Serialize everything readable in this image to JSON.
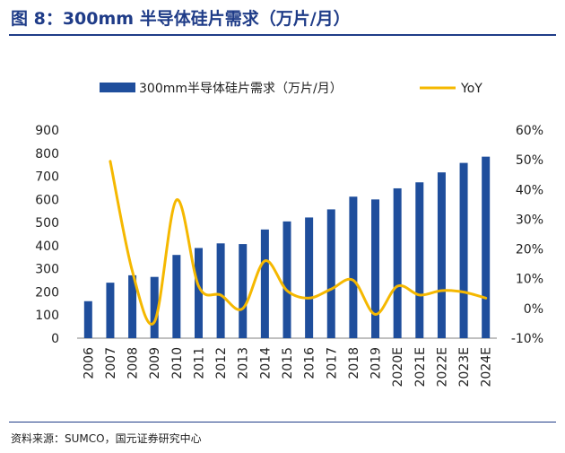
{
  "figure": {
    "title": "图 8：300mm 半导体硅片需求（万片/月）",
    "source": "资料来源：SUMCO，国元证券研究中心"
  },
  "chart_data": {
    "type": "bar",
    "categories": [
      "2006",
      "2007",
      "2008",
      "2009",
      "2010",
      "2011",
      "2012",
      "2013",
      "2014",
      "2015",
      "2016",
      "2017",
      "2018",
      "2019",
      "2020E",
      "2021E",
      "2022E",
      "2023E",
      "2024E"
    ],
    "series": [
      {
        "name": "300mm半导体硅片需求（万片/月）",
        "type": "bar",
        "axis": "left",
        "color": "#1f4e9c",
        "values": [
          160,
          240,
          272,
          265,
          360,
          390,
          410,
          407,
          470,
          505,
          522,
          557,
          612,
          600,
          648,
          674,
          717,
          758,
          785
        ]
      },
      {
        "name": "YoY",
        "type": "line",
        "axis": "right",
        "color": "#f5b800",
        "values": [
          null,
          49.5,
          12.5,
          -4.5,
          36.5,
          7.5,
          4.5,
          0,
          16,
          6,
          3.5,
          6.5,
          9.5,
          -2,
          7.5,
          4.5,
          6,
          5.5,
          3.5
        ]
      }
    ],
    "y_left": {
      "ylim": [
        0,
        900
      ],
      "ticks": [
        "0",
        "100",
        "200",
        "300",
        "400",
        "500",
        "600",
        "700",
        "800",
        "900"
      ]
    },
    "y_right": {
      "ylim": [
        -10,
        60
      ],
      "ticks": [
        "-10%",
        "0%",
        "10%",
        "20%",
        "30%",
        "40%",
        "50%",
        "60%"
      ]
    },
    "legend": {
      "position": "top"
    },
    "grid": false
  }
}
